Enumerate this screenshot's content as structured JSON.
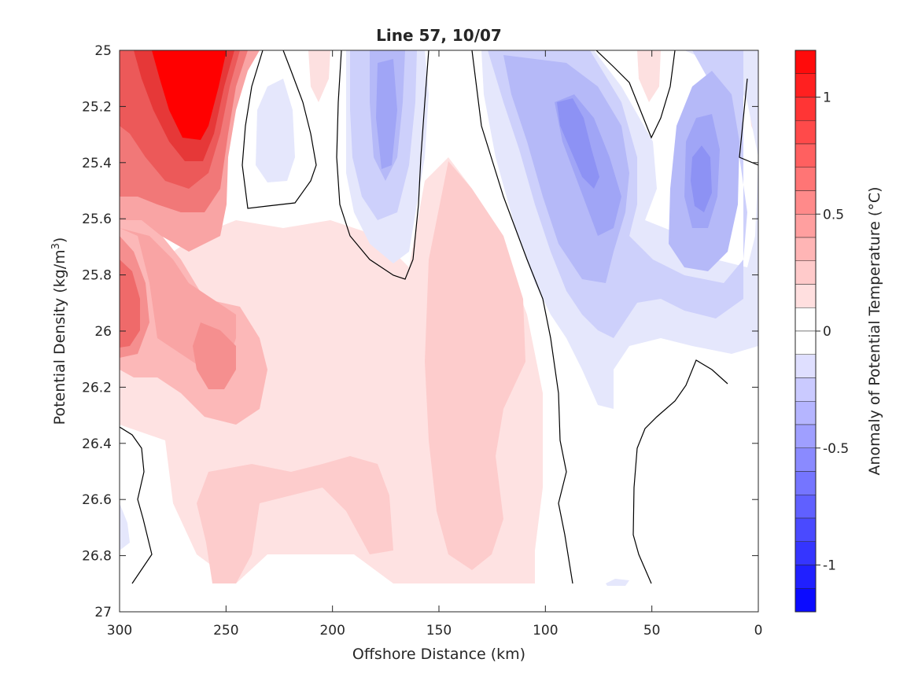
{
  "chart_data": {
    "type": "heatmap",
    "subtype": "filled-contour",
    "title": "Line 57, 10/07",
    "xlabel": "Offshore Distance (km)",
    "ylabel_parts": {
      "main": "Potential Density (kg/m",
      "sup": "3",
      "end": ")"
    },
    "xlim": [
      300,
      0
    ],
    "x_reversed": true,
    "ylim": [
      27,
      25
    ],
    "y_reversed": true,
    "x_ticks": [
      300,
      250,
      200,
      150,
      100,
      50,
      0
    ],
    "y_ticks": [
      25,
      25.2,
      25.4,
      25.6,
      25.8,
      26,
      26.2,
      26.4,
      26.6,
      26.8,
      27
    ],
    "x_tick_labels": [
      "300",
      "250",
      "200",
      "150",
      "100",
      "50",
      "0"
    ],
    "y_tick_labels": [
      "25",
      "25.2",
      "25.4",
      "25.6",
      "25.8",
      "26",
      "26.2",
      "26.4",
      "26.6",
      "26.8",
      "27"
    ],
    "colorbar": {
      "label": "Anomaly of Potential Temperature (°C)",
      "range": [
        -1.2,
        1.2
      ],
      "step": 0.1,
      "ticks": [
        1,
        0.5,
        0,
        -0.5,
        -1
      ],
      "tick_labels": [
        "1",
        "0.5",
        "0",
        "-0.5",
        "-1"
      ],
      "colormap": "blue-white-red",
      "zero_contour": "black line"
    },
    "anomaly_regions": [
      {
        "name": "warm core",
        "sign": "positive",
        "x_range": [
          300,
          245
        ],
        "y_range": [
          25.0,
          26.1
        ],
        "peak": 1.2,
        "peak_location": [
          265,
          25.1
        ]
      },
      {
        "name": "warm offshore flank",
        "sign": "positive",
        "x_range": [
          300,
          285
        ],
        "y_range": [
          25.6,
          26.1
        ],
        "peak": 0.6
      },
      {
        "name": "warm mid layer",
        "sign": "positive",
        "x_range": [
          300,
          105
        ],
        "y_range": [
          25.6,
          26.9
        ],
        "peak": 0.4
      },
      {
        "name": "warm band",
        "sign": "positive",
        "x_range": [
          165,
          105
        ],
        "y_range": [
          25.4,
          26.8
        ],
        "peak": 0.3
      },
      {
        "name": "cool intrusion",
        "sign": "negative",
        "x_range": [
          190,
          155
        ],
        "y_range": [
          25.0,
          25.8
        ],
        "peak": -0.5
      },
      {
        "name": "cool patch",
        "sign": "negative",
        "x_range": [
          235,
          220
        ],
        "y_range": [
          25.1,
          25.4
        ],
        "peak": -0.2
      },
      {
        "name": "cool nearshore",
        "sign": "negative",
        "x_range": [
          130,
          5
        ],
        "y_range": [
          25.0,
          26.3
        ],
        "peak": -0.5,
        "peak_location": [
          75,
          25.4
        ]
      },
      {
        "name": "cool nearshore core",
        "sign": "negative",
        "x_range": [
          40,
          20
        ],
        "y_range": [
          25.3,
          25.8
        ],
        "peak": -0.5
      },
      {
        "name": "cool deep offshore",
        "sign": "negative",
        "x_range": [
          300,
          295
        ],
        "y_range": [
          26.6,
          26.8
        ],
        "peak": -0.1
      }
    ]
  }
}
